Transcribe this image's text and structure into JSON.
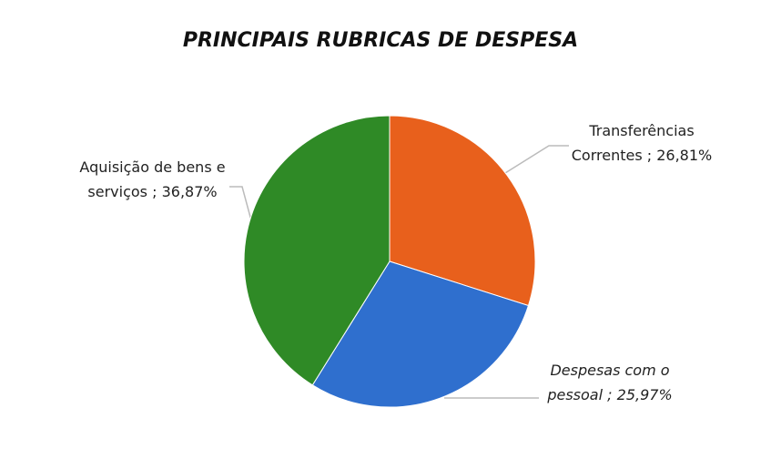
{
  "chart_data": {
    "type": "pie",
    "title": "PRINCIPAIS RUBRICAS DE DESPESA",
    "categories": [
      "Transferências Correntes",
      "Despesas com o pessoal",
      "Aquisição de bens e serviços"
    ],
    "values": [
      26.81,
      25.97,
      36.87
    ],
    "value_labels": [
      "26,81%",
      "25,97%",
      "36,87%"
    ],
    "label_separator": ";",
    "colors": [
      "#e8601c",
      "#2f6fce",
      "#2f8a26"
    ]
  }
}
